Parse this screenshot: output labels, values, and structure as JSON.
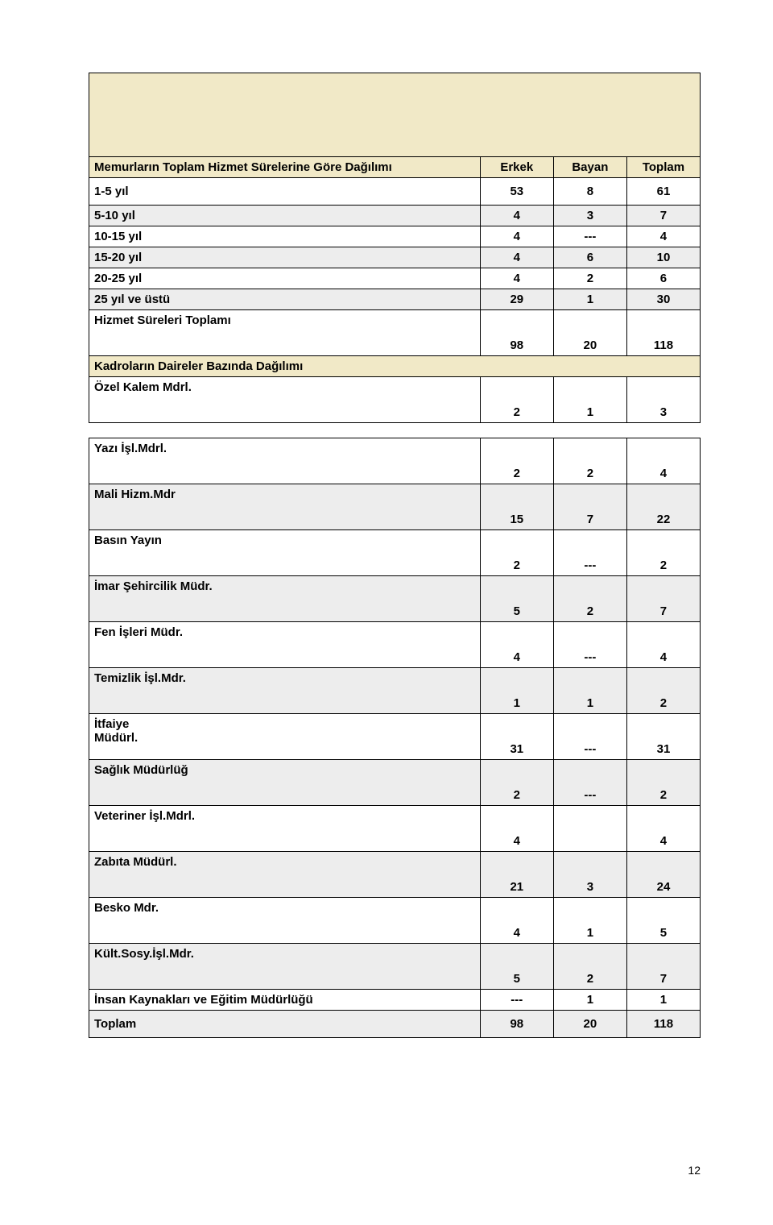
{
  "table1": {
    "header": {
      "title": "Memurların Toplam Hizmet Sürelerine Göre Dağılımı",
      "c1": "Erkek",
      "c2": "Bayan",
      "c3": "Toplam"
    },
    "rows": [
      {
        "label": "1-5 yıl",
        "c1": "53",
        "c2": "8",
        "c3": "61"
      },
      {
        "label": "5-10 yıl",
        "c1": "4",
        "c2": "3",
        "c3": "7"
      },
      {
        "label": "10-15 yıl",
        "c1": "4",
        "c2": "---",
        "c3": "4"
      },
      {
        "label": "15-20 yıl",
        "c1": "4",
        "c2": "6",
        "c3": "10"
      },
      {
        "label": "20-25 yıl",
        "c1": "4",
        "c2": "2",
        "c3": "6"
      },
      {
        "label": "25 yıl ve üstü",
        "c1": "29",
        "c2": "1",
        "c3": "30"
      }
    ],
    "total": {
      "label": "Hizmet Süreleri Toplamı",
      "c1": "98",
      "c2": "20",
      "c3": "118"
    }
  },
  "band2": "Kadroların Daireler Bazında Dağılımı",
  "dept_first": {
    "label": "Özel Kalem Mdrl.",
    "c1": "2",
    "c2": "1",
    "c3": "3"
  },
  "departments": [
    {
      "label": "Yazı İşl.Mdrl.",
      "c1": "2",
      "c2": "2",
      "c3": "4"
    },
    {
      "label": "Mali Hizm.Mdr",
      "c1": "15",
      "c2": "7",
      "c3": "22"
    },
    {
      "label": "Basın Yayın",
      "c1": "2",
      "c2": "---",
      "c3": "2"
    },
    {
      "label": "İmar Şehircilik Müdr.",
      "c1": "5",
      "c2": "2",
      "c3": "7"
    },
    {
      "label": "Fen İşleri Müdr.",
      "c1": "4",
      "c2": "---",
      "c3": "4"
    },
    {
      "label": "Temizlik İşl.Mdr.",
      "c1": "1",
      "c2": "1",
      "c3": "2"
    },
    {
      "label": "İtfaiye\nMüdürl.",
      "c1": "31",
      "c2": "---",
      "c3": "31"
    },
    {
      "label": "Sağlık Müdürlüğ",
      "c1": "2",
      "c2": "---",
      "c3": "2"
    },
    {
      "label": "Veteriner İşl.Mdrl.",
      "c1": "4",
      "c2": "",
      "c3": "4"
    },
    {
      "label": "Zabıta Müdürl.",
      "c1": "21",
      "c2": "3",
      "c3": "24"
    },
    {
      "label": "Besko Mdr.",
      "c1": "4",
      "c2": "1",
      "c3": "5"
    },
    {
      "label": "Kült.Sosy.İşl.Mdr.",
      "c1": "5",
      "c2": "2",
      "c3": "7"
    }
  ],
  "dept_last": {
    "label": "İnsan Kaynakları ve Eğitim Müdürlüğü",
    "c1": "---",
    "c2": "1",
    "c3": "1"
  },
  "grand": {
    "label": "Toplam",
    "c1": "98",
    "c2": "20",
    "c3": "118"
  },
  "page_number": "12"
}
